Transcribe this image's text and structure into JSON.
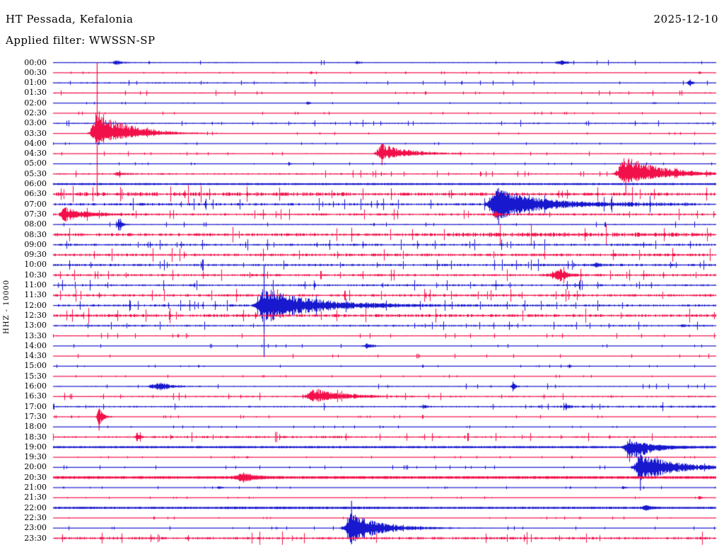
{
  "header": {
    "station_title": "HT Pessada, Kefalonia",
    "filter_label": "Applied filter: WWSSN-SP",
    "date": "2025-12-10"
  },
  "axis": {
    "y_label": "HHZ - 10000"
  },
  "colors": {
    "trace_blue": "#1818CE",
    "trace_red": "#F2104A",
    "text": "#000000",
    "background": "#FFFFFF"
  },
  "chart_data": {
    "type": "line",
    "subtype": "helicorder-seismogram",
    "title": "HT Pessada, Kefalonia",
    "filter": "WWSSN-SP",
    "date": "2025-12-10",
    "channel_scale_label": "HHZ - 10000",
    "minutes_per_row": 30,
    "legend": "alternating blue (:00) and red (:30) half-hour traces, amplitudes in px, event t = fraction of 30-min row",
    "rows": [
      {
        "label": "00:00",
        "color": "blue",
        "noise": 0.8,
        "events": [
          {
            "t": 0.096,
            "amp": 3,
            "rise": 5,
            "fall": 9
          },
          {
            "t": 0.459,
            "amp": 2,
            "rise": 2,
            "fall": 4
          },
          {
            "t": 0.768,
            "amp": 3,
            "rise": 6,
            "fall": 8
          }
        ]
      },
      {
        "label": "00:30",
        "color": "red",
        "noise": 0.4,
        "events": [
          {
            "t": 0.389,
            "amp": 2,
            "rise": 2,
            "fall": 3
          },
          {
            "t": 0.976,
            "amp": 2,
            "rise": 2,
            "fall": 3
          }
        ]
      },
      {
        "label": "01:00",
        "color": "blue",
        "noise": 0.75,
        "segments": [
          [
            0,
            0.4,
            1.4
          ]
        ],
        "events": [
          {
            "t": 0.96,
            "amp": 3.5,
            "rise": 2,
            "fall": 5
          }
        ]
      },
      {
        "label": "01:30",
        "color": "red",
        "noise": 0.55,
        "segments": [
          [
            0,
            0.3,
            1.6
          ],
          [
            0.79,
            1,
            1.7
          ]
        ]
      },
      {
        "label": "02:00",
        "color": "blue",
        "noise": 0.4,
        "events": [
          {
            "t": 0.384,
            "amp": 2.5,
            "rise": 2,
            "fall": 4
          },
          {
            "t": 0.907,
            "amp": 2,
            "rise": 2,
            "fall": 3
          }
        ]
      },
      {
        "label": "02:30",
        "color": "red",
        "noise": 0.5
      },
      {
        "label": "03:00",
        "color": "blue",
        "noise": 1.0
      },
      {
        "label": "03:30",
        "color": "red",
        "noise": 0.5,
        "events": [
          {
            "t": 0.066,
            "amp": 26,
            "rise": 5,
            "fall": 42,
            "bias": 0.35,
            "span": [
              0,
              13.2
            ]
          }
        ]
      },
      {
        "label": "04:00",
        "color": "blue",
        "noise": 0.45
      },
      {
        "label": "04:30",
        "color": "red",
        "noise": 0.8,
        "events": [
          {
            "t": 0.496,
            "amp": 11,
            "rise": 5,
            "fall": 38,
            "bias": 0.3,
            "span": [
              8.0,
              10.15
            ]
          }
        ]
      },
      {
        "label": "05:00",
        "color": "blue",
        "noise": 0.45,
        "events": [
          {
            "t": 0.357,
            "amp": 1.5,
            "rise": 3,
            "fall": 4
          }
        ]
      },
      {
        "label": "05:30",
        "color": "red",
        "noise": 0.9,
        "segments": [
          [
            0,
            0.5,
            1.3
          ]
        ],
        "events": [
          {
            "t": 0.099,
            "amp": 3,
            "rise": 3,
            "fall": 7
          },
          {
            "t": 0.864,
            "amp": 20,
            "rise": 7,
            "fall": 50,
            "bias": 0.3,
            "span": [
              10.4,
              13.0
            ]
          }
        ]
      },
      {
        "label": "06:00",
        "color": "blue",
        "noise": 1.4,
        "smooth": true
      },
      {
        "label": "06:30",
        "color": "red",
        "noise": 2.2,
        "segments": [
          [
            0,
            0.45,
            1.25
          ]
        ]
      },
      {
        "label": "07:00",
        "color": "blue",
        "noise": 1.8,
        "segments": [
          [
            0.82,
            0.96,
            1.4
          ]
        ],
        "events": [
          {
            "t": 0.672,
            "amp": 22,
            "rise": 8,
            "fall": 60,
            "span": [
              12.4,
              16.0
            ]
          }
        ]
      },
      {
        "label": "07:30",
        "color": "red",
        "noise": 1.6,
        "events": [
          {
            "t": 0.016,
            "amp": 10,
            "rise": 3,
            "fall": 30
          },
          {
            "t": 0.667,
            "amp": 5,
            "rise": 2,
            "fall": 4
          }
        ]
      },
      {
        "label": "08:00",
        "color": "blue",
        "noise": 0.9,
        "events": [
          {
            "t": 0.099,
            "amp": 10,
            "rise": 1.5,
            "fall": 4,
            "span": [
              15.6,
              16.6
            ]
          }
        ]
      },
      {
        "label": "08:30",
        "color": "red",
        "noise": 2.2,
        "segments": [
          [
            0.6,
            1,
            1.4
          ]
        ]
      },
      {
        "label": "09:00",
        "color": "blue",
        "noise": 1.6
      },
      {
        "label": "09:30",
        "color": "red",
        "noise": 2.0
      },
      {
        "label": "10:00",
        "color": "blue",
        "noise": 1.7,
        "events": [
          {
            "t": 0.82,
            "amp": 4,
            "rise": 3,
            "fall": 5
          }
        ]
      },
      {
        "label": "10:30",
        "color": "red",
        "noise": 1.7,
        "events": [
          {
            "t": 0.766,
            "amp": 8,
            "rise": 9,
            "fall": 11
          }
        ]
      },
      {
        "label": "11:00",
        "color": "blue",
        "noise": 1.5
      },
      {
        "label": "11:30",
        "color": "red",
        "noise": 1.8
      },
      {
        "label": "12:00",
        "color": "blue",
        "noise": 1.6,
        "events": [
          {
            "t": 0.318,
            "amp": 24,
            "rise": 6,
            "fall": 70,
            "span": [
              20.0,
              29.1
            ]
          }
        ]
      },
      {
        "label": "12:30",
        "color": "red",
        "noise": 2.2
      },
      {
        "label": "13:00",
        "color": "blue",
        "noise": 1.3,
        "events": [
          {
            "t": 0.95,
            "amp": 3,
            "rise": 2,
            "fall": 4
          }
        ]
      },
      {
        "label": "13:30",
        "color": "red",
        "noise": 0.8
      },
      {
        "label": "14:00",
        "color": "blue",
        "noise": 0.6,
        "events": [
          {
            "t": 0.475,
            "amp": 4,
            "rise": 4,
            "fall": 8
          }
        ]
      },
      {
        "label": "14:30",
        "color": "red",
        "noise": 0.7
      },
      {
        "label": "15:00",
        "color": "blue",
        "noise": 0.5,
        "events": [
          {
            "t": 0.779,
            "amp": 3,
            "rise": 2,
            "fall": 4
          }
        ]
      },
      {
        "label": "15:30",
        "color": "red",
        "noise": 0.5
      },
      {
        "label": "16:00",
        "color": "blue",
        "noise": 0.9,
        "events": [
          {
            "t": 0.163,
            "amp": 5,
            "rise": 9,
            "fall": 16
          },
          {
            "t": 0.694,
            "amp": 7,
            "rise": 1.5,
            "fall": 3
          }
        ]
      },
      {
        "label": "16:30",
        "color": "red",
        "noise": 1.1,
        "events": [
          {
            "t": 0.397,
            "amp": 9,
            "rise": 9,
            "fall": 40,
            "bias": 0.2
          }
        ]
      },
      {
        "label": "17:00",
        "color": "blue",
        "noise": 1.1,
        "segments": [
          [
            0.72,
            1,
            1.35
          ]
        ],
        "events": [
          {
            "t": 0.56,
            "amp": 3,
            "rise": 2,
            "fall": 4
          },
          {
            "t": 0.774,
            "amp": 4,
            "rise": 2,
            "fall": 5
          }
        ]
      },
      {
        "label": "17:30",
        "color": "red",
        "noise": 0.55,
        "events": [
          {
            "t": 0.069,
            "amp": 13,
            "rise": 2,
            "fall": 6,
            "span": [
              34.7,
              36.35
            ]
          }
        ]
      },
      {
        "label": "18:00",
        "color": "blue",
        "noise": 0.45
      },
      {
        "label": "18:30",
        "color": "red",
        "noise": 1.2,
        "segments": [
          [
            0.15,
            0.45,
            1.4
          ]
        ],
        "events": [
          {
            "t": 0.126,
            "amp": 6,
            "rise": 1.5,
            "fall": 4
          }
        ]
      },
      {
        "label": "19:00",
        "color": "blue",
        "noise": 1.5,
        "smooth": true,
        "events": [
          {
            "t": 0.87,
            "amp": 16,
            "rise": 4,
            "fall": 26,
            "bias": -0.35,
            "span": [
              37.2,
              39.05
            ]
          }
        ]
      },
      {
        "label": "19:30",
        "color": "red",
        "noise": 0.45,
        "events": [
          {
            "t": 0.293,
            "amp": 1.5,
            "rise": 2,
            "fall": 3
          }
        ]
      },
      {
        "label": "20:00",
        "color": "blue",
        "noise": 0.65,
        "events": [
          {
            "t": 0.886,
            "amp": 20,
            "rise": 5,
            "fall": 50,
            "span": [
              38.7,
              42.3
            ]
          }
        ]
      },
      {
        "label": "20:30",
        "color": "red",
        "noise": 1.9,
        "smooth": true,
        "events": [
          {
            "t": 0.288,
            "amp": 6,
            "rise": 7,
            "fall": 14
          }
        ]
      },
      {
        "label": "21:00",
        "color": "blue",
        "noise": 0.45,
        "events": [
          {
            "t": 0.251,
            "amp": 3,
            "rise": 2,
            "fall": 4
          },
          {
            "t": 0.861,
            "amp": 2.5,
            "rise": 2,
            "fall": 4
          }
        ]
      },
      {
        "label": "21:30",
        "color": "red",
        "noise": 0.4,
        "events": [
          {
            "t": 0.976,
            "amp": 2.5,
            "rise": 2,
            "fall": 4
          }
        ]
      },
      {
        "label": "22:00",
        "color": "blue",
        "noise": 1.5,
        "smooth": true,
        "segments": [
          [
            0.25,
            0.5,
            1.15
          ]
        ],
        "events": [
          {
            "t": 0.896,
            "amp": 3,
            "rise": 4,
            "fall": 7
          }
        ]
      },
      {
        "label": "22:30",
        "color": "red",
        "noise": 0.45
      },
      {
        "label": "23:00",
        "color": "blue",
        "noise": 0.6,
        "events": [
          {
            "t": 0.45,
            "amp": 22,
            "rise": 6,
            "fall": 40,
            "span": [
              43.3,
              47.6
            ]
          }
        ]
      },
      {
        "label": "23:30",
        "color": "red",
        "noise": 1.9
      }
    ]
  }
}
